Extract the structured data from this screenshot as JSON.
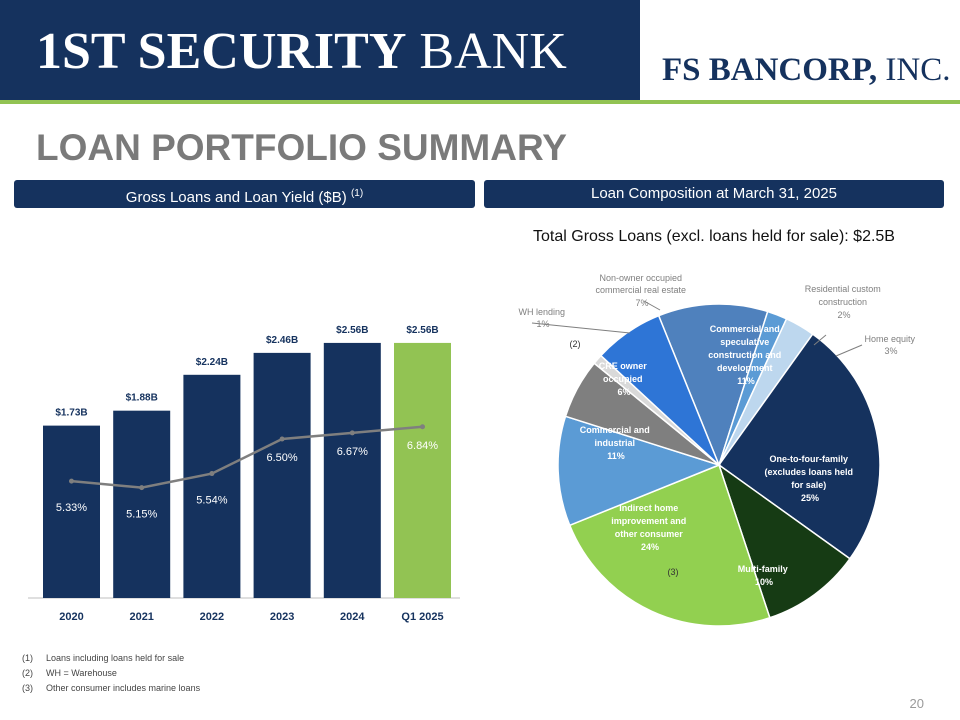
{
  "header": {
    "logo_left_first": "1ST",
    "logo_left_rest": " SECURITY",
    "logo_left_bank": " BANK",
    "logo_right_main": "FS BANCORP,",
    "logo_right_inc": " INC."
  },
  "page_title": "LOAN PORTFOLIO SUMMARY",
  "left_section": {
    "title": "Gross Loans and Loan Yield ($B)",
    "superscript": "(1)"
  },
  "right_section": {
    "title": "Loan Composition at March 31, 2025"
  },
  "pie_subtitle": "Total Gross Loans (excl. loans held for sale): $2.5B",
  "colors": {
    "navy": "#15325e",
    "green_accent": "#92c353",
    "title_gray": "#7a7a7a",
    "yield_line": "#7f7f7f"
  },
  "chart_data": [
    {
      "type": "bar",
      "title": "Gross Loans and Loan Yield ($B) (1)",
      "categories": [
        "2020",
        "2021",
        "2022",
        "2023",
        "2024",
        "Q1 2025"
      ],
      "series": [
        {
          "values": [
            1.73,
            1.88,
            2.24,
            2.46,
            2.56,
            2.56
          ],
          "value_labels": [
            "$1.73B",
            "$1.88B",
            "$2.24B",
            "$2.46B",
            "$2.56B",
            "$2.56B"
          ],
          "colors": [
            "#15325e",
            "#15325e",
            "#15325e",
            "#15325e",
            "#15325e",
            "#92c353"
          ]
        },
        {
          "type": "line",
          "values": [
            5.33,
            5.15,
            5.54,
            6.5,
            6.67,
            6.84
          ],
          "value_labels": [
            "5.33%",
            "5.15%",
            "5.54%",
            "6.50%",
            "6.67%",
            "6.84%"
          ]
        }
      ],
      "ylim": [
        0,
        2.8
      ],
      "grid": false
    },
    {
      "type": "pie",
      "title": "Total Gross Loans (excl. loans held for sale): $2.5B",
      "slices": [
        {
          "label": "Commercial and speculative construction and development",
          "pct_label": "11%",
          "value": 11,
          "color": "#4f81bd",
          "label_color": "#ffffff"
        },
        {
          "label": "Residential custom construction",
          "pct_label": "2%",
          "value": 2,
          "color": "#5b9bd5",
          "label_color": "#7f7f7f"
        },
        {
          "label": "Home equity",
          "pct_label": "3%",
          "value": 3,
          "color": "#bdd7ee",
          "label_color": "#7f7f7f"
        },
        {
          "label": "One-to-four-family (excludes loans held for sale)",
          "pct_label": "25%",
          "value": 25,
          "color": "#15325e",
          "label_color": "#ffffff"
        },
        {
          "label": "Multi-family",
          "pct_label": "10%",
          "value": 10,
          "color": "#163b14",
          "label_color": "#ffffff"
        },
        {
          "label": "Indirect home improvement and other consumer",
          "pct_label": "24%",
          "value": 24,
          "color": "#92d050",
          "label_color": "#ffffff",
          "note": "(3)"
        },
        {
          "label": "Commercial and industrial",
          "pct_label": "11%",
          "value": 11,
          "color": "#5b9bd5",
          "label_color": "#ffffff"
        },
        {
          "label": "CRE owner occupied",
          "pct_label": "6%",
          "value": 6,
          "color": "#7f7f7f",
          "label_color": "#ffffff",
          "note": "(2)"
        },
        {
          "label": "WH lending",
          "pct_label": "1%",
          "value": 1,
          "color": "#d9d9d9",
          "label_color": "#7f7f7f"
        },
        {
          "label": "Non-owner occupied commercial real estate",
          "pct_label": "7%",
          "value": 7,
          "color": "#2e75d6",
          "label_color": "#7f7f7f"
        }
      ]
    }
  ],
  "pie_labels": {
    "constr_1": "Commercial and",
    "constr_2": "speculative",
    "constr_3": "construction and",
    "constr_4": "development",
    "constr_pct": "11%",
    "rcc_1": "Residential custom",
    "rcc_2": "construction",
    "rcc_pct": "2%",
    "he_1": "Home equity",
    "he_pct": "3%",
    "oaf_1": "One-to-four-family",
    "oaf_2": "(excludes loans held",
    "oaf_3": "for sale)",
    "oaf_pct": "25%",
    "mf_1": "Multi-family",
    "mf_pct": "10%",
    "ind_1": "Indirect home",
    "ind_2": "improvement and",
    "ind_3": "other consumer",
    "ind_pct": "24%",
    "ind_note": "(3)",
    "ci_1": "Commercial and",
    "ci_2": "industrial",
    "ci_pct": "11%",
    "cre_1": "CRE owner",
    "cre_2": "occupied",
    "cre_pct": "6%",
    "cre_note": "(2)",
    "wh_1": "WH lending",
    "wh_pct": "1%",
    "noo_1": "Non-owner occupied",
    "noo_2": "commercial real estate",
    "noo_pct": "7%"
  },
  "footnotes": [
    {
      "num": "(1)",
      "text": "Loans including loans held for sale"
    },
    {
      "num": "(2)",
      "text": "WH = Warehouse"
    },
    {
      "num": "(3)",
      "text": "Other consumer includes marine loans"
    }
  ],
  "page_number": "20"
}
